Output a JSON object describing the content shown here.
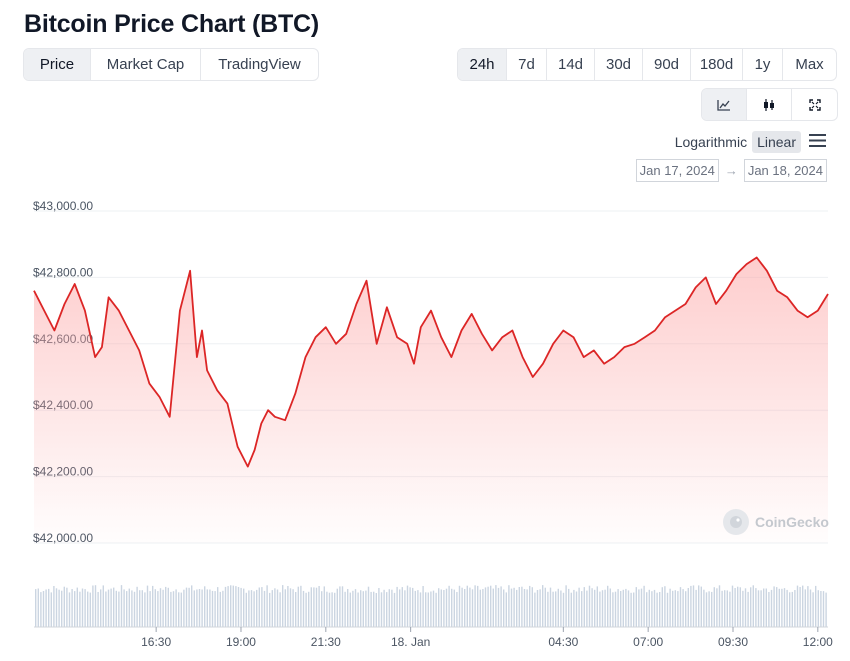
{
  "page": {
    "title": "Bitcoin Price Chart (BTC)"
  },
  "view_tabs": [
    {
      "label": "Price",
      "active": true
    },
    {
      "label": "Market Cap",
      "active": false
    },
    {
      "label": "TradingView",
      "active": false
    }
  ],
  "range_tabs": [
    {
      "label": "24h",
      "active": true
    },
    {
      "label": "7d",
      "active": false
    },
    {
      "label": "14d",
      "active": false
    },
    {
      "label": "30d",
      "active": false
    },
    {
      "label": "90d",
      "active": false
    },
    {
      "label": "180d",
      "active": false
    },
    {
      "label": "1y",
      "active": false
    },
    {
      "label": "Max",
      "active": false
    }
  ],
  "chart_type": [
    "line-chart-icon",
    "candlestick-icon",
    "fullscreen-icon"
  ],
  "scale": {
    "logarithmic": "Logarithmic",
    "linear": "Linear",
    "active": "Linear"
  },
  "date_range": {
    "from": "Jan 17, 2024",
    "arrow": "→",
    "to": "Jan 18, 2024"
  },
  "watermark": "CoinGecko",
  "colors": {
    "line": "#dc2626",
    "fill_top": "#fca5a5",
    "volume": "#cbd5e1",
    "grid": "#eef0f3"
  },
  "chart_data": {
    "type": "area",
    "title": "",
    "xlabel": "",
    "ylabel": "",
    "ylim": [
      42000,
      43000
    ],
    "yticks": [
      "$43,000.00",
      "$42,800.00",
      "$42,600.00",
      "$42,400.00",
      "$42,200.00",
      "$42,000.00"
    ],
    "ytick_values": [
      43000,
      42800,
      42600,
      42400,
      42200,
      42000
    ],
    "xticks": [
      "16:30",
      "19:00",
      "21:30",
      "18. Jan",
      "04:30",
      "07:00",
      "09:30",
      "12:00"
    ],
    "xtick_hours": [
      3.5,
      6,
      8.5,
      11,
      15.5,
      18,
      20.5,
      23
    ],
    "x_range_hours": [
      -0.1,
      23.3
    ],
    "series": [
      {
        "x_hours": [
          -0.1,
          0.2,
          0.5,
          0.8,
          1.1,
          1.4,
          1.7,
          1.9,
          2.1,
          2.4,
          2.7,
          3.0,
          3.3,
          3.6,
          3.9,
          4.2,
          4.5,
          4.7,
          4.85,
          5.0,
          5.3,
          5.6,
          5.9,
          6.2,
          6.4,
          6.6,
          6.8,
          7.0,
          7.3,
          7.6,
          7.9,
          8.2,
          8.5,
          8.8,
          9.1,
          9.4,
          9.7,
          10.0,
          10.3,
          10.6,
          10.9,
          11.1,
          11.3,
          11.6,
          11.9,
          12.2,
          12.5,
          12.8,
          13.1,
          13.4,
          13.7,
          14.0,
          14.3,
          14.6,
          14.9,
          15.2,
          15.5,
          15.8,
          16.1,
          16.4,
          16.7,
          17.0,
          17.3,
          17.6,
          17.9,
          18.2,
          18.5,
          18.8,
          19.1,
          19.4,
          19.7,
          20.0,
          20.3,
          20.6,
          20.9,
          21.2,
          21.5,
          21.8,
          22.1,
          22.4,
          22.7,
          23.0,
          23.3
        ],
        "values": [
          42760,
          42700,
          42640,
          42720,
          42780,
          42700,
          42560,
          42590,
          42740,
          42700,
          42640,
          42580,
          42480,
          42440,
          42380,
          42700,
          42820,
          42560,
          42640,
          42520,
          42460,
          42420,
          42290,
          42230,
          42280,
          42360,
          42400,
          42380,
          42370,
          42450,
          42560,
          42620,
          42650,
          42600,
          42630,
          42720,
          42790,
          42600,
          42710,
          42620,
          42600,
          42540,
          42650,
          42700,
          42620,
          42560,
          42640,
          42690,
          42630,
          42580,
          42620,
          42640,
          42560,
          42500,
          42540,
          42600,
          42640,
          42620,
          42560,
          42580,
          42540,
          42560,
          42590,
          42600,
          42620,
          42640,
          42680,
          42700,
          42720,
          42770,
          42800,
          42720,
          42760,
          42810,
          42840,
          42860,
          42820,
          42760,
          42740,
          42700,
          42680,
          42700,
          42750
        ]
      }
    ],
    "volume": {
      "note": ""
    }
  }
}
